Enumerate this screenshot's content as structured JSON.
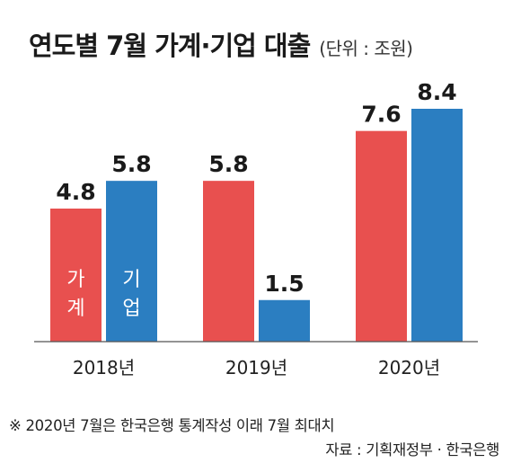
{
  "chart_data": {
    "type": "bar",
    "title": "연도별 7월 가계·기업 대출",
    "unit_label": "(단위 : 조원)",
    "categories": [
      "2018년",
      "2019년",
      "2020년"
    ],
    "series": [
      {
        "name": "가계",
        "values": [
          4.8,
          5.8,
          7.6
        ],
        "color": "#e8504f"
      },
      {
        "name": "기업",
        "values": [
          5.8,
          1.5,
          8.4
        ],
        "color": "#2b7ec1"
      }
    ],
    "ylim": [
      0,
      8.4
    ],
    "grid": false,
    "legend": "inside-first-bars"
  },
  "footnote": "※ 2020년 7월은 한국은행 통계작성 이래 7월 최대치",
  "source": "자료 : 기획재정부 · 한국은행"
}
